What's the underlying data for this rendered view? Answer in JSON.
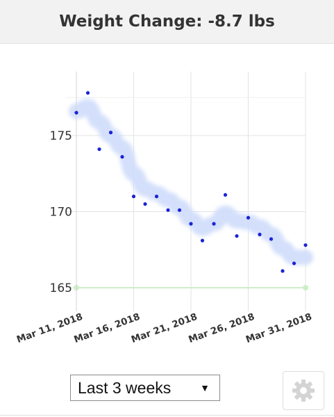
{
  "header": {
    "title": "Weight Change: -8.7 lbs"
  },
  "controls": {
    "range_select": {
      "selected": "Last 3 weeks"
    },
    "settings_icon": "gear-icon"
  },
  "chart_data": {
    "type": "scatter",
    "x_tick_labels": [
      "Mar 11, 2018",
      "Mar 16, 2018",
      "Mar 21, 2018",
      "Mar 26, 2018",
      "Mar 31, 2018"
    ],
    "y_tick_labels": [
      "165",
      "170",
      "175"
    ],
    "ylim": [
      163,
      179
    ],
    "xlim": [
      "2018-03-11",
      "2018-03-31"
    ],
    "grid": true,
    "series": [
      {
        "values": [
          {
            "x": "2018-03-11",
            "y": 176.5
          },
          {
            "x": "2018-03-12",
            "y": 177.8
          },
          {
            "x": "2018-03-13",
            "y": 174.1
          },
          {
            "x": "2018-03-14",
            "y": 175.2
          },
          {
            "x": "2018-03-15",
            "y": 173.6
          },
          {
            "x": "2018-03-16",
            "y": 171.0
          },
          {
            "x": "2018-03-17",
            "y": 170.5
          },
          {
            "x": "2018-03-18",
            "y": 171.0
          },
          {
            "x": "2018-03-19",
            "y": 170.1
          },
          {
            "x": "2018-03-20",
            "y": 170.1
          },
          {
            "x": "2018-03-21",
            "y": 169.2
          },
          {
            "x": "2018-03-22",
            "y": 168.1
          },
          {
            "x": "2018-03-23",
            "y": 169.2
          },
          {
            "x": "2018-03-24",
            "y": 171.1
          },
          {
            "x": "2018-03-25",
            "y": 168.4
          },
          {
            "x": "2018-03-26",
            "y": 169.6
          },
          {
            "x": "2018-03-27",
            "y": 168.5
          },
          {
            "x": "2018-03-28",
            "y": 168.2
          },
          {
            "x": "2018-03-29",
            "y": 166.1
          },
          {
            "x": "2018-03-30",
            "y": 166.6
          },
          {
            "x": "2018-03-31",
            "y": 167.8
          }
        ]
      },
      {
        "type": "line",
        "values": [
          {
            "x": "2018-03-11",
            "y": 176.6
          },
          {
            "x": "2018-03-12",
            "y": 176.9
          },
          {
            "x": "2018-03-13",
            "y": 175.9
          },
          {
            "x": "2018-03-14",
            "y": 175.0
          },
          {
            "x": "2018-03-15",
            "y": 174.2
          },
          {
            "x": "2018-03-16",
            "y": 172.5
          },
          {
            "x": "2018-03-17",
            "y": 171.5
          },
          {
            "x": "2018-03-18",
            "y": 171.2
          },
          {
            "x": "2018-03-19",
            "y": 170.8
          },
          {
            "x": "2018-03-20",
            "y": 170.3
          },
          {
            "x": "2018-03-21",
            "y": 169.5
          },
          {
            "x": "2018-03-22",
            "y": 168.9
          },
          {
            "x": "2018-03-23",
            "y": 169.2
          },
          {
            "x": "2018-03-24",
            "y": 169.9
          },
          {
            "x": "2018-03-25",
            "y": 169.4
          },
          {
            "x": "2018-03-26",
            "y": 169.3
          },
          {
            "x": "2018-03-27",
            "y": 169.0
          },
          {
            "x": "2018-03-28",
            "y": 168.5
          },
          {
            "x": "2018-03-29",
            "y": 167.6
          },
          {
            "x": "2018-03-30",
            "y": 167.0
          },
          {
            "x": "2018-03-31",
            "y": 167.0
          }
        ]
      },
      {
        "type": "line",
        "values": [
          {
            "x": "2018-03-11",
            "y": 165
          },
          {
            "x": "2018-03-31",
            "y": 165
          }
        ]
      }
    ],
    "colors": {
      "points": "#1a23d6",
      "trend": "#cfdcfb",
      "goal": "#ccefc6",
      "grid": "#e3e3e3"
    }
  }
}
